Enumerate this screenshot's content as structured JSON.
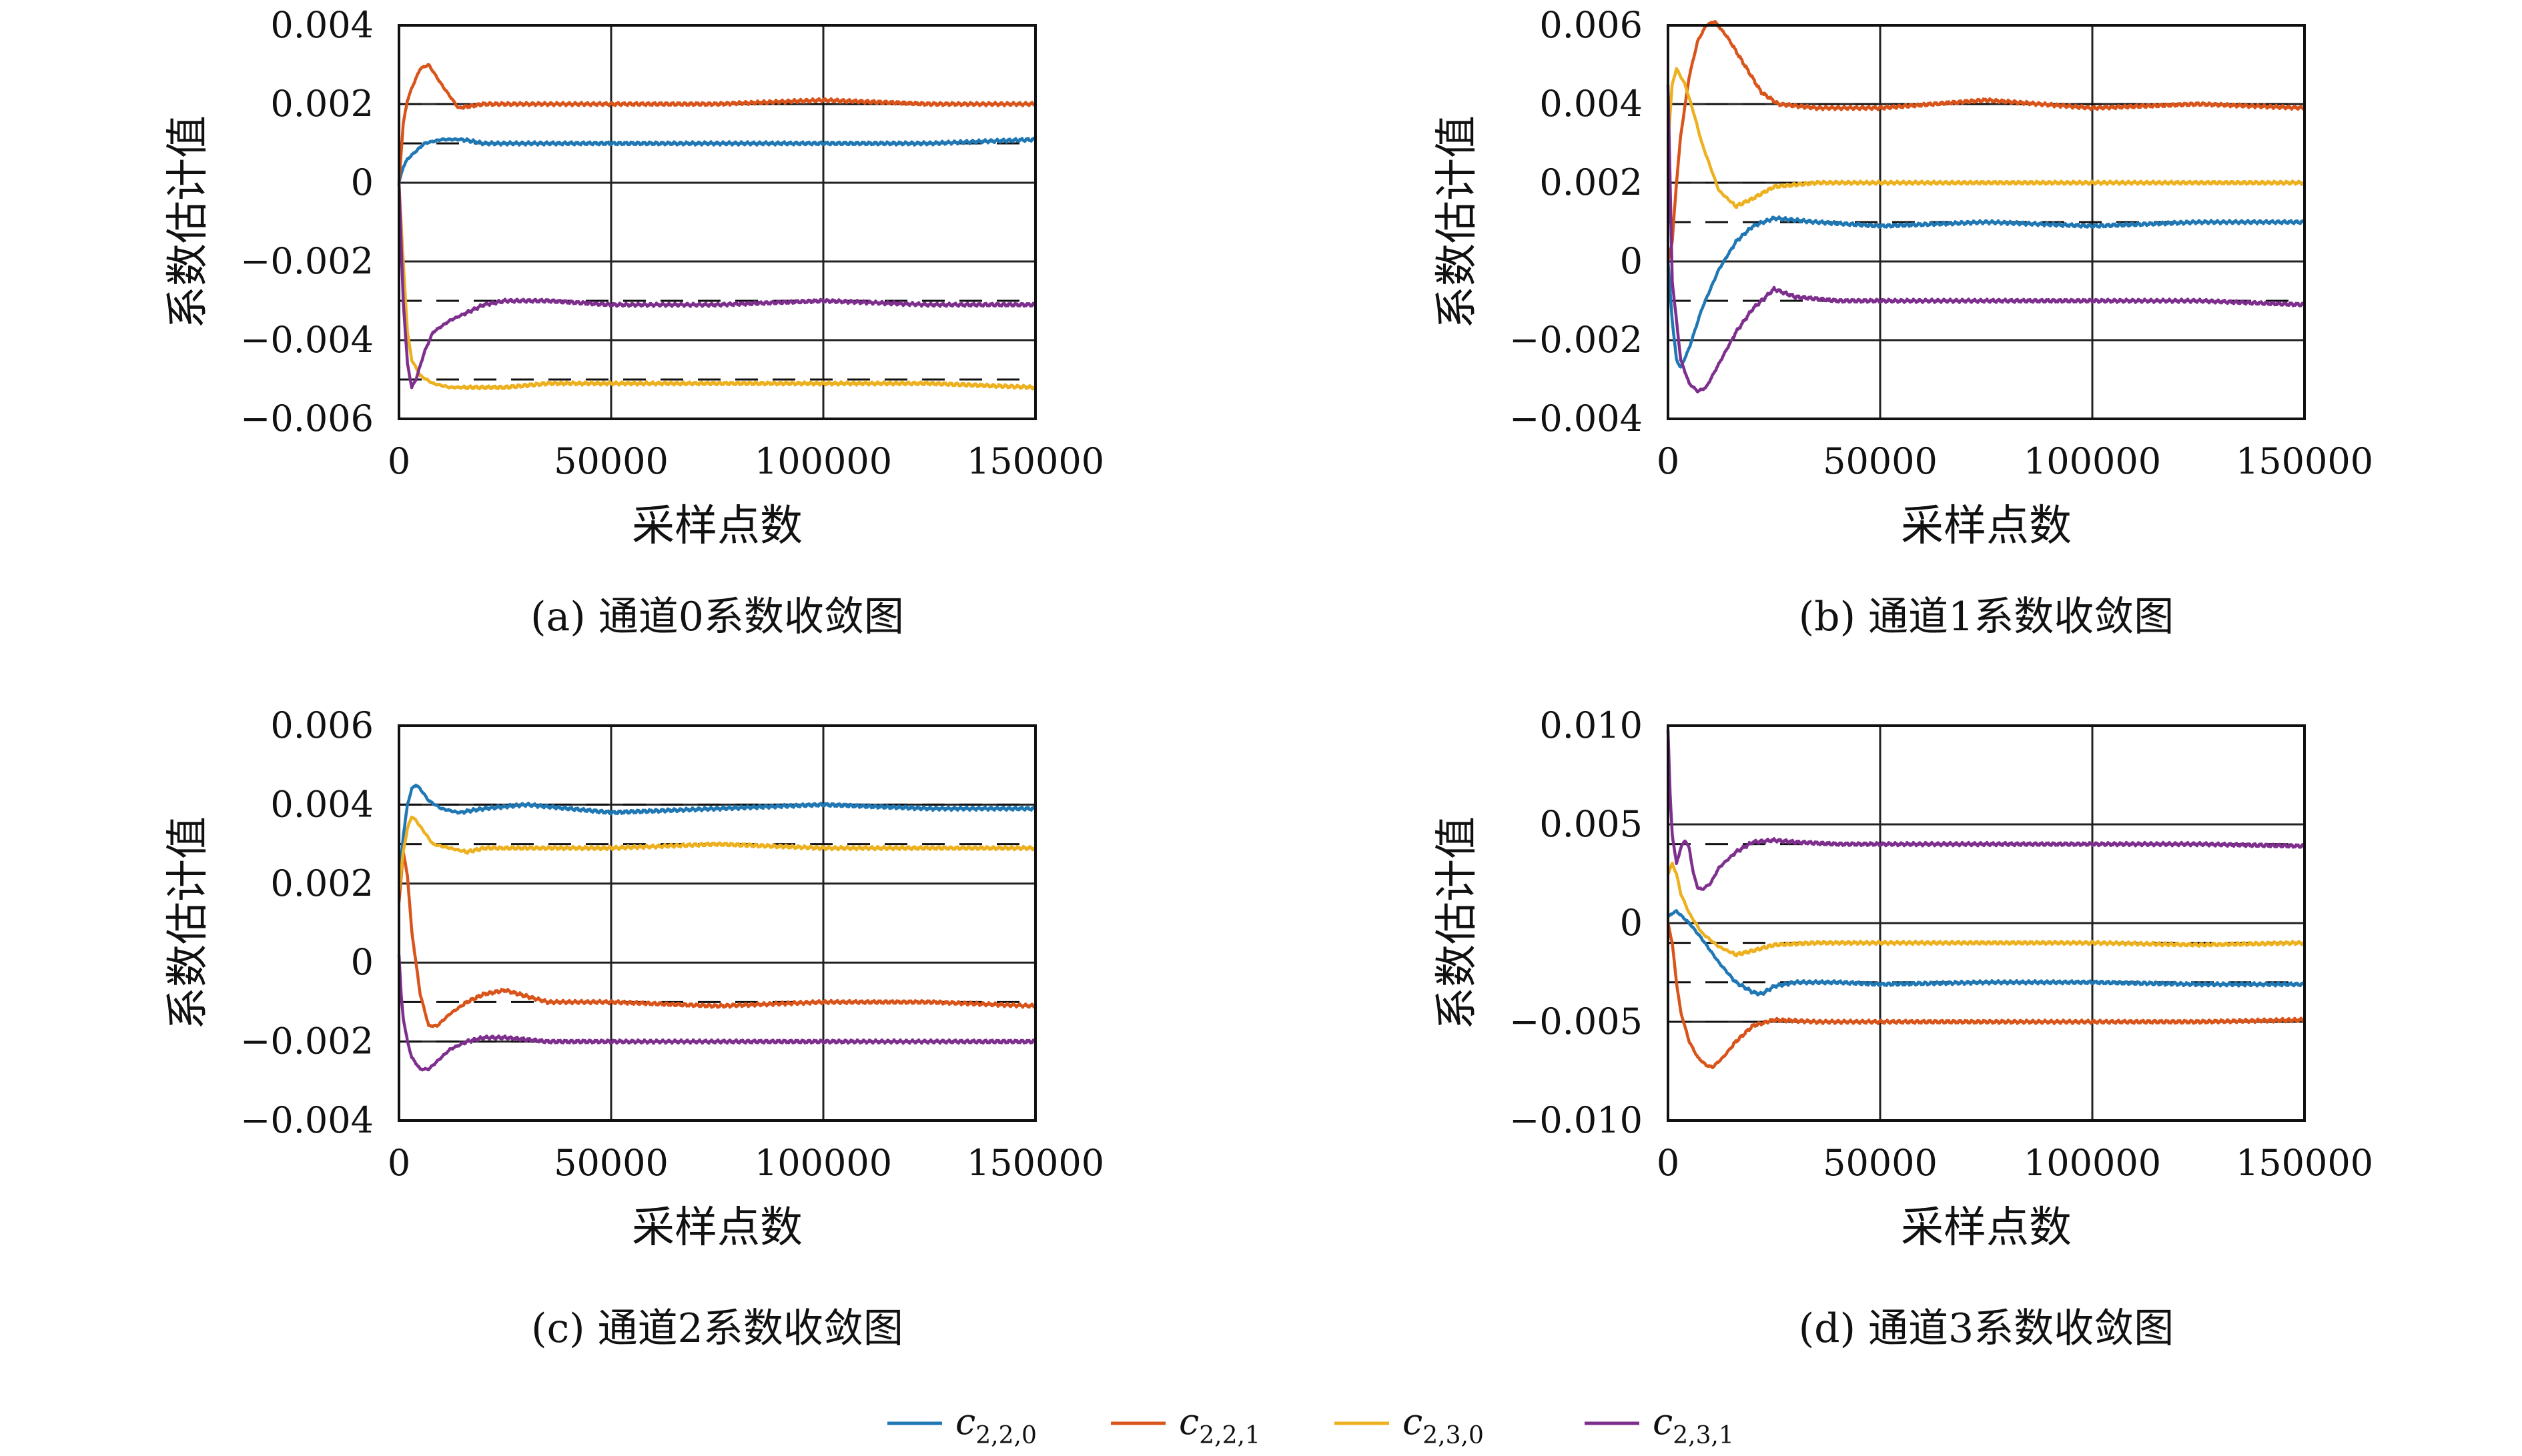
{
  "legend": [
    {
      "main": "c",
      "sub": "2,2,0",
      "color": "#1f77b4"
    },
    {
      "main": "c",
      "sub": "2,2,1",
      "color": "#d9541a"
    },
    {
      "main": "c",
      "sub": "2,3,0",
      "color": "#edb120"
    },
    {
      "main": "c",
      "sub": "2,3,1",
      "color": "#7e2f8e"
    }
  ],
  "chart_data": [
    {
      "type": "line",
      "caption": "(a) 通道0系数收敛图",
      "xlabel": "采样点数",
      "ylabel": "系数估计值",
      "xlim": [
        0,
        150000
      ],
      "ylim": [
        -0.006,
        0.004
      ],
      "xticks": [
        0,
        50000,
        100000,
        150000
      ],
      "xtick_labels": [
        "0",
        "50000",
        "100000",
        "150000"
      ],
      "yticks": [
        0.004,
        0.002,
        0,
        -0.002,
        -0.004,
        -0.006
      ],
      "ytick_labels": [
        "0.004",
        "0.002",
        "0",
        "−0.002",
        "−0.004",
        "−0.006"
      ],
      "grid": true,
      "reference_values": [
        0.001,
        0.002,
        -0.005,
        -0.003
      ],
      "series": [
        {
          "color": "#1f77b4",
          "x": [
            0,
            1000,
            2000,
            4000,
            6000,
            10000,
            15000,
            20000,
            30000,
            50000,
            75000,
            100000,
            125000,
            150000
          ],
          "y": [
            0,
            0.0004,
            0.0006,
            0.0008,
            0.001,
            0.0011,
            0.0011,
            0.001,
            0.001,
            0.001,
            0.001,
            0.001,
            0.001,
            0.0011
          ]
        },
        {
          "color": "#d9541a",
          "x": [
            0,
            1000,
            2000,
            3000,
            5000,
            7000,
            10000,
            14000,
            20000,
            30000,
            50000,
            75000,
            100000,
            125000,
            150000
          ],
          "y": [
            0,
            0.0015,
            0.0021,
            0.0024,
            0.0029,
            0.003,
            0.0025,
            0.0019,
            0.002,
            0.002,
            0.002,
            0.002,
            0.0021,
            0.002,
            0.002
          ]
        },
        {
          "color": "#edb120",
          "x": [
            0,
            1000,
            2000,
            3000,
            5000,
            8000,
            12000,
            18000,
            25000,
            35000,
            50000,
            75000,
            100000,
            125000,
            150000
          ],
          "y": [
            0,
            -0.002,
            -0.0038,
            -0.0045,
            -0.0049,
            -0.0051,
            -0.0052,
            -0.0052,
            -0.0052,
            -0.0051,
            -0.0051,
            -0.0051,
            -0.0051,
            -0.0051,
            -0.0052
          ]
        },
        {
          "color": "#7e2f8e",
          "x": [
            0,
            1000,
            2000,
            3000,
            4000,
            6000,
            8000,
            12000,
            16000,
            20000,
            25000,
            35000,
            50000,
            75000,
            100000,
            125000,
            150000
          ],
          "y": [
            0,
            -0.003,
            -0.0046,
            -0.0052,
            -0.005,
            -0.0043,
            -0.0038,
            -0.0035,
            -0.0033,
            -0.0031,
            -0.003,
            -0.003,
            -0.0031,
            -0.0031,
            -0.003,
            -0.0031,
            -0.0031
          ]
        }
      ]
    },
    {
      "type": "line",
      "caption": "(b) 通道1系数收敛图",
      "xlabel": "采样点数",
      "ylabel": "系数估计值",
      "xlim": [
        0,
        150000
      ],
      "ylim": [
        -0.004,
        0.006
      ],
      "xticks": [
        0,
        50000,
        100000,
        150000
      ],
      "xtick_labels": [
        "0",
        "50000",
        "100000",
        "150000"
      ],
      "yticks": [
        0.006,
        0.004,
        0.002,
        0,
        -0.002,
        -0.004
      ],
      "ytick_labels": [
        "0.006",
        "0.004",
        "0.002",
        "0",
        "−0.002",
        "−0.004"
      ],
      "grid": true,
      "reference_values": [
        0.001,
        0.004,
        0.002,
        -0.001
      ],
      "series": [
        {
          "color": "#1f77b4",
          "x": [
            0,
            1000,
            2000,
            3000,
            5000,
            8000,
            12000,
            16000,
            20000,
            25000,
            35000,
            50000,
            75000,
            100000,
            125000,
            150000
          ],
          "y": [
            0,
            -0.0015,
            -0.0025,
            -0.0027,
            -0.0022,
            -0.0012,
            -0.0002,
            0.0005,
            0.0009,
            0.0011,
            0.001,
            0.0009,
            0.001,
            0.0009,
            0.001,
            0.001
          ]
        },
        {
          "color": "#d9541a",
          "x": [
            0,
            1000,
            2000,
            3000,
            5000,
            7000,
            9000,
            11000,
            14000,
            18000,
            22000,
            26000,
            35000,
            50000,
            75000,
            100000,
            125000,
            150000
          ],
          "y": [
            0,
            0.0005,
            0.002,
            0.0032,
            0.0047,
            0.0056,
            0.006,
            0.0061,
            0.0057,
            0.005,
            0.0043,
            0.004,
            0.0039,
            0.0039,
            0.0041,
            0.0039,
            0.004,
            0.0039
          ]
        },
        {
          "color": "#edb120",
          "x": [
            0,
            1000,
            2000,
            3000,
            4000,
            6000,
            8000,
            12000,
            16000,
            20000,
            25000,
            35000,
            50000,
            75000,
            100000,
            125000,
            150000
          ],
          "y": [
            0.003,
            0.0045,
            0.0049,
            0.0047,
            0.0045,
            0.0038,
            0.003,
            0.0018,
            0.0014,
            0.0016,
            0.0019,
            0.002,
            0.002,
            0.002,
            0.002,
            0.002,
            0.002
          ]
        },
        {
          "color": "#7e2f8e",
          "x": [
            0,
            500,
            1000,
            2000,
            3000,
            5000,
            7000,
            9000,
            12000,
            16000,
            20000,
            25000,
            30000,
            40000,
            50000,
            75000,
            100000,
            125000,
            150000
          ],
          "y": [
            0.0045,
            0.002,
            -0.0005,
            -0.0015,
            -0.0025,
            -0.0031,
            -0.0033,
            -0.0032,
            -0.0026,
            -0.0018,
            -0.0012,
            -0.0007,
            -0.0009,
            -0.001,
            -0.001,
            -0.001,
            -0.001,
            -0.001,
            -0.0011
          ]
        }
      ]
    },
    {
      "type": "line",
      "caption": "(c) 通道2系数收敛图",
      "xlabel": "采样点数",
      "ylabel": "系数估计值",
      "xlim": [
        0,
        150000
      ],
      "ylim": [
        -0.004,
        0.006
      ],
      "xticks": [
        0,
        50000,
        100000,
        150000
      ],
      "xtick_labels": [
        "0",
        "50000",
        "100000",
        "150000"
      ],
      "yticks": [
        0.006,
        0.004,
        0.002,
        0,
        -0.002,
        -0.004
      ],
      "ytick_labels": [
        "0.006",
        "0.004",
        "0.002",
        "0",
        "−0.002",
        "−0.004"
      ],
      "grid": true,
      "reference_values": [
        0.004,
        -0.001,
        0.003,
        -0.002
      ],
      "series": [
        {
          "color": "#1f77b4",
          "x": [
            0,
            1000,
            2000,
            3000,
            4000,
            5000,
            7000,
            10000,
            14000,
            20000,
            30000,
            50000,
            75000,
            100000,
            125000,
            150000
          ],
          "y": [
            0.002,
            0.0032,
            0.004,
            0.0044,
            0.0045,
            0.0044,
            0.0041,
            0.0039,
            0.0038,
            0.0039,
            0.004,
            0.0038,
            0.0039,
            0.004,
            0.0039,
            0.0039
          ]
        },
        {
          "color": "#d9541a",
          "x": [
            0,
            1000,
            2000,
            3000,
            5000,
            7000,
            9000,
            12000,
            16000,
            20000,
            25000,
            35000,
            50000,
            75000,
            100000,
            125000,
            150000
          ],
          "y": [
            0.0015,
            0.0028,
            0.0022,
            0.0008,
            -0.0008,
            -0.0016,
            -0.0016,
            -0.0013,
            -0.001,
            -0.0008,
            -0.0007,
            -0.001,
            -0.001,
            -0.0011,
            -0.001,
            -0.001,
            -0.0011
          ]
        },
        {
          "color": "#edb120",
          "x": [
            0,
            1000,
            2000,
            3000,
            4000,
            6000,
            8000,
            12000,
            16000,
            20000,
            30000,
            50000,
            75000,
            100000,
            125000,
            150000
          ],
          "y": [
            0.0018,
            0.0028,
            0.0034,
            0.0037,
            0.0036,
            0.0033,
            0.003,
            0.0029,
            0.0028,
            0.0029,
            0.0029,
            0.0029,
            0.003,
            0.0029,
            0.0029,
            0.0029
          ]
        },
        {
          "color": "#7e2f8e",
          "x": [
            0,
            500,
            1000,
            2000,
            3000,
            5000,
            7000,
            9000,
            12000,
            16000,
            20000,
            25000,
            35000,
            50000,
            75000,
            100000,
            125000,
            150000
          ],
          "y": [
            0.0002,
            -0.0008,
            -0.0014,
            -0.002,
            -0.0024,
            -0.0027,
            -0.0027,
            -0.0025,
            -0.0022,
            -0.002,
            -0.0019,
            -0.0019,
            -0.002,
            -0.002,
            -0.002,
            -0.002,
            -0.002,
            -0.002
          ]
        }
      ]
    },
    {
      "type": "line",
      "caption": "(d) 通道3系数收敛图",
      "xlabel": "采样点数",
      "ylabel": "系数估计值",
      "xlim": [
        0,
        150000
      ],
      "ylim": [
        -0.01,
        0.01
      ],
      "xticks": [
        0,
        50000,
        100000,
        150000
      ],
      "xtick_labels": [
        "0",
        "50000",
        "100000",
        "150000"
      ],
      "yticks": [
        0.01,
        0.005,
        0,
        -0.005,
        -0.01
      ],
      "ytick_labels": [
        "0.010",
        "0.005",
        "0",
        "−0.005",
        "−0.010"
      ],
      "grid": true,
      "reference_values": [
        -0.003,
        -0.005,
        -0.001,
        0.004
      ],
      "series": [
        {
          "color": "#1f77b4",
          "x": [
            0,
            1000,
            2000,
            3000,
            5000,
            8000,
            12000,
            16000,
            20000,
            22000,
            25000,
            30000,
            40000,
            50000,
            75000,
            100000,
            125000,
            150000
          ],
          "y": [
            0.0003,
            0.0005,
            0.0006,
            0.0004,
            0,
            -0.0008,
            -0.002,
            -0.003,
            -0.0035,
            -0.0036,
            -0.0032,
            -0.003,
            -0.003,
            -0.0031,
            -0.003,
            -0.003,
            -0.0031,
            -0.0031
          ]
        },
        {
          "color": "#d9541a",
          "x": [
            0,
            1000,
            2000,
            3000,
            5000,
            7000,
            9000,
            10500,
            13000,
            16000,
            20000,
            25000,
            35000,
            50000,
            75000,
            100000,
            125000,
            150000
          ],
          "y": [
            0,
            -0.001,
            -0.003,
            -0.0045,
            -0.006,
            -0.0068,
            -0.0072,
            -0.0073,
            -0.0068,
            -0.006,
            -0.0052,
            -0.0049,
            -0.005,
            -0.005,
            -0.005,
            -0.005,
            -0.005,
            -0.0049
          ]
        },
        {
          "color": "#edb120",
          "x": [
            0,
            1000,
            2000,
            3000,
            5000,
            8000,
            12000,
            16000,
            20000,
            25000,
            35000,
            50000,
            75000,
            100000,
            125000,
            150000
          ],
          "y": [
            0.0025,
            0.003,
            0.0025,
            0.0015,
            0.0005,
            -0.0005,
            -0.0012,
            -0.0016,
            -0.0014,
            -0.0011,
            -0.001,
            -0.001,
            -0.001,
            -0.001,
            -0.0011,
            -0.001
          ]
        },
        {
          "color": "#7e2f8e",
          "x": [
            0,
            500,
            1000,
            2000,
            3000,
            4000,
            5000,
            6000,
            7000,
            8000,
            10000,
            12000,
            16000,
            20000,
            25000,
            30000,
            40000,
            50000,
            75000,
            100000,
            125000,
            150000
          ],
          "y": [
            0.0098,
            0.0065,
            0.0045,
            0.003,
            0.0038,
            0.0042,
            0.0038,
            0.0025,
            0.0018,
            0.0017,
            0.002,
            0.0028,
            0.0036,
            0.0041,
            0.0042,
            0.0041,
            0.004,
            0.004,
            0.004,
            0.004,
            0.004,
            0.0039
          ]
        }
      ]
    }
  ]
}
